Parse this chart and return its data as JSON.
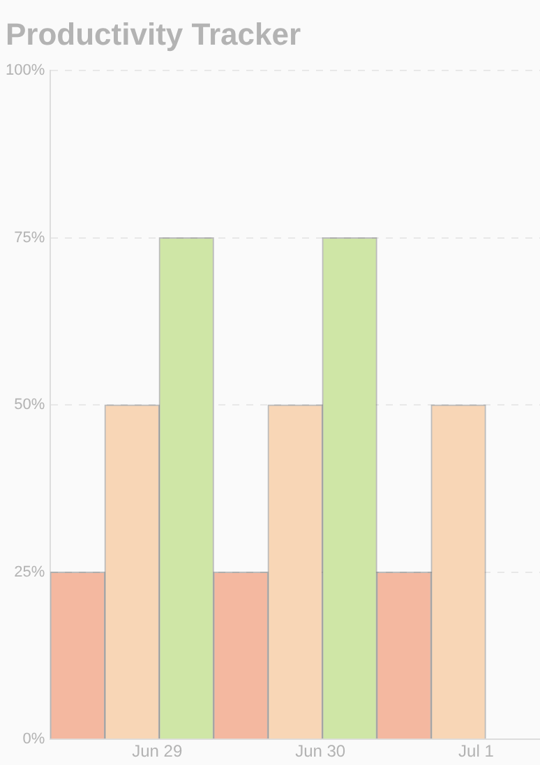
{
  "chart_data": {
    "type": "bar",
    "title": "Productivity Tracker",
    "categories": [
      "Jun 29",
      "Jun 30",
      "Jul 1"
    ],
    "series": [
      {
        "color": "#f4b8a0",
        "values": [
          25,
          25,
          25
        ]
      },
      {
        "color": "#f8d6b6",
        "values": [
          50,
          50,
          50
        ]
      },
      {
        "color": "#cfe6a6",
        "values": [
          75,
          75,
          null
        ]
      }
    ],
    "ylim": [
      0,
      100
    ],
    "yticks": [
      {
        "value": 0,
        "label": "0%"
      },
      {
        "value": 25,
        "label": "25%"
      },
      {
        "value": 50,
        "label": "50%"
      },
      {
        "value": 75,
        "label": "75%"
      },
      {
        "value": 100,
        "label": "100%"
      }
    ],
    "grid": "y",
    "legend": false
  }
}
